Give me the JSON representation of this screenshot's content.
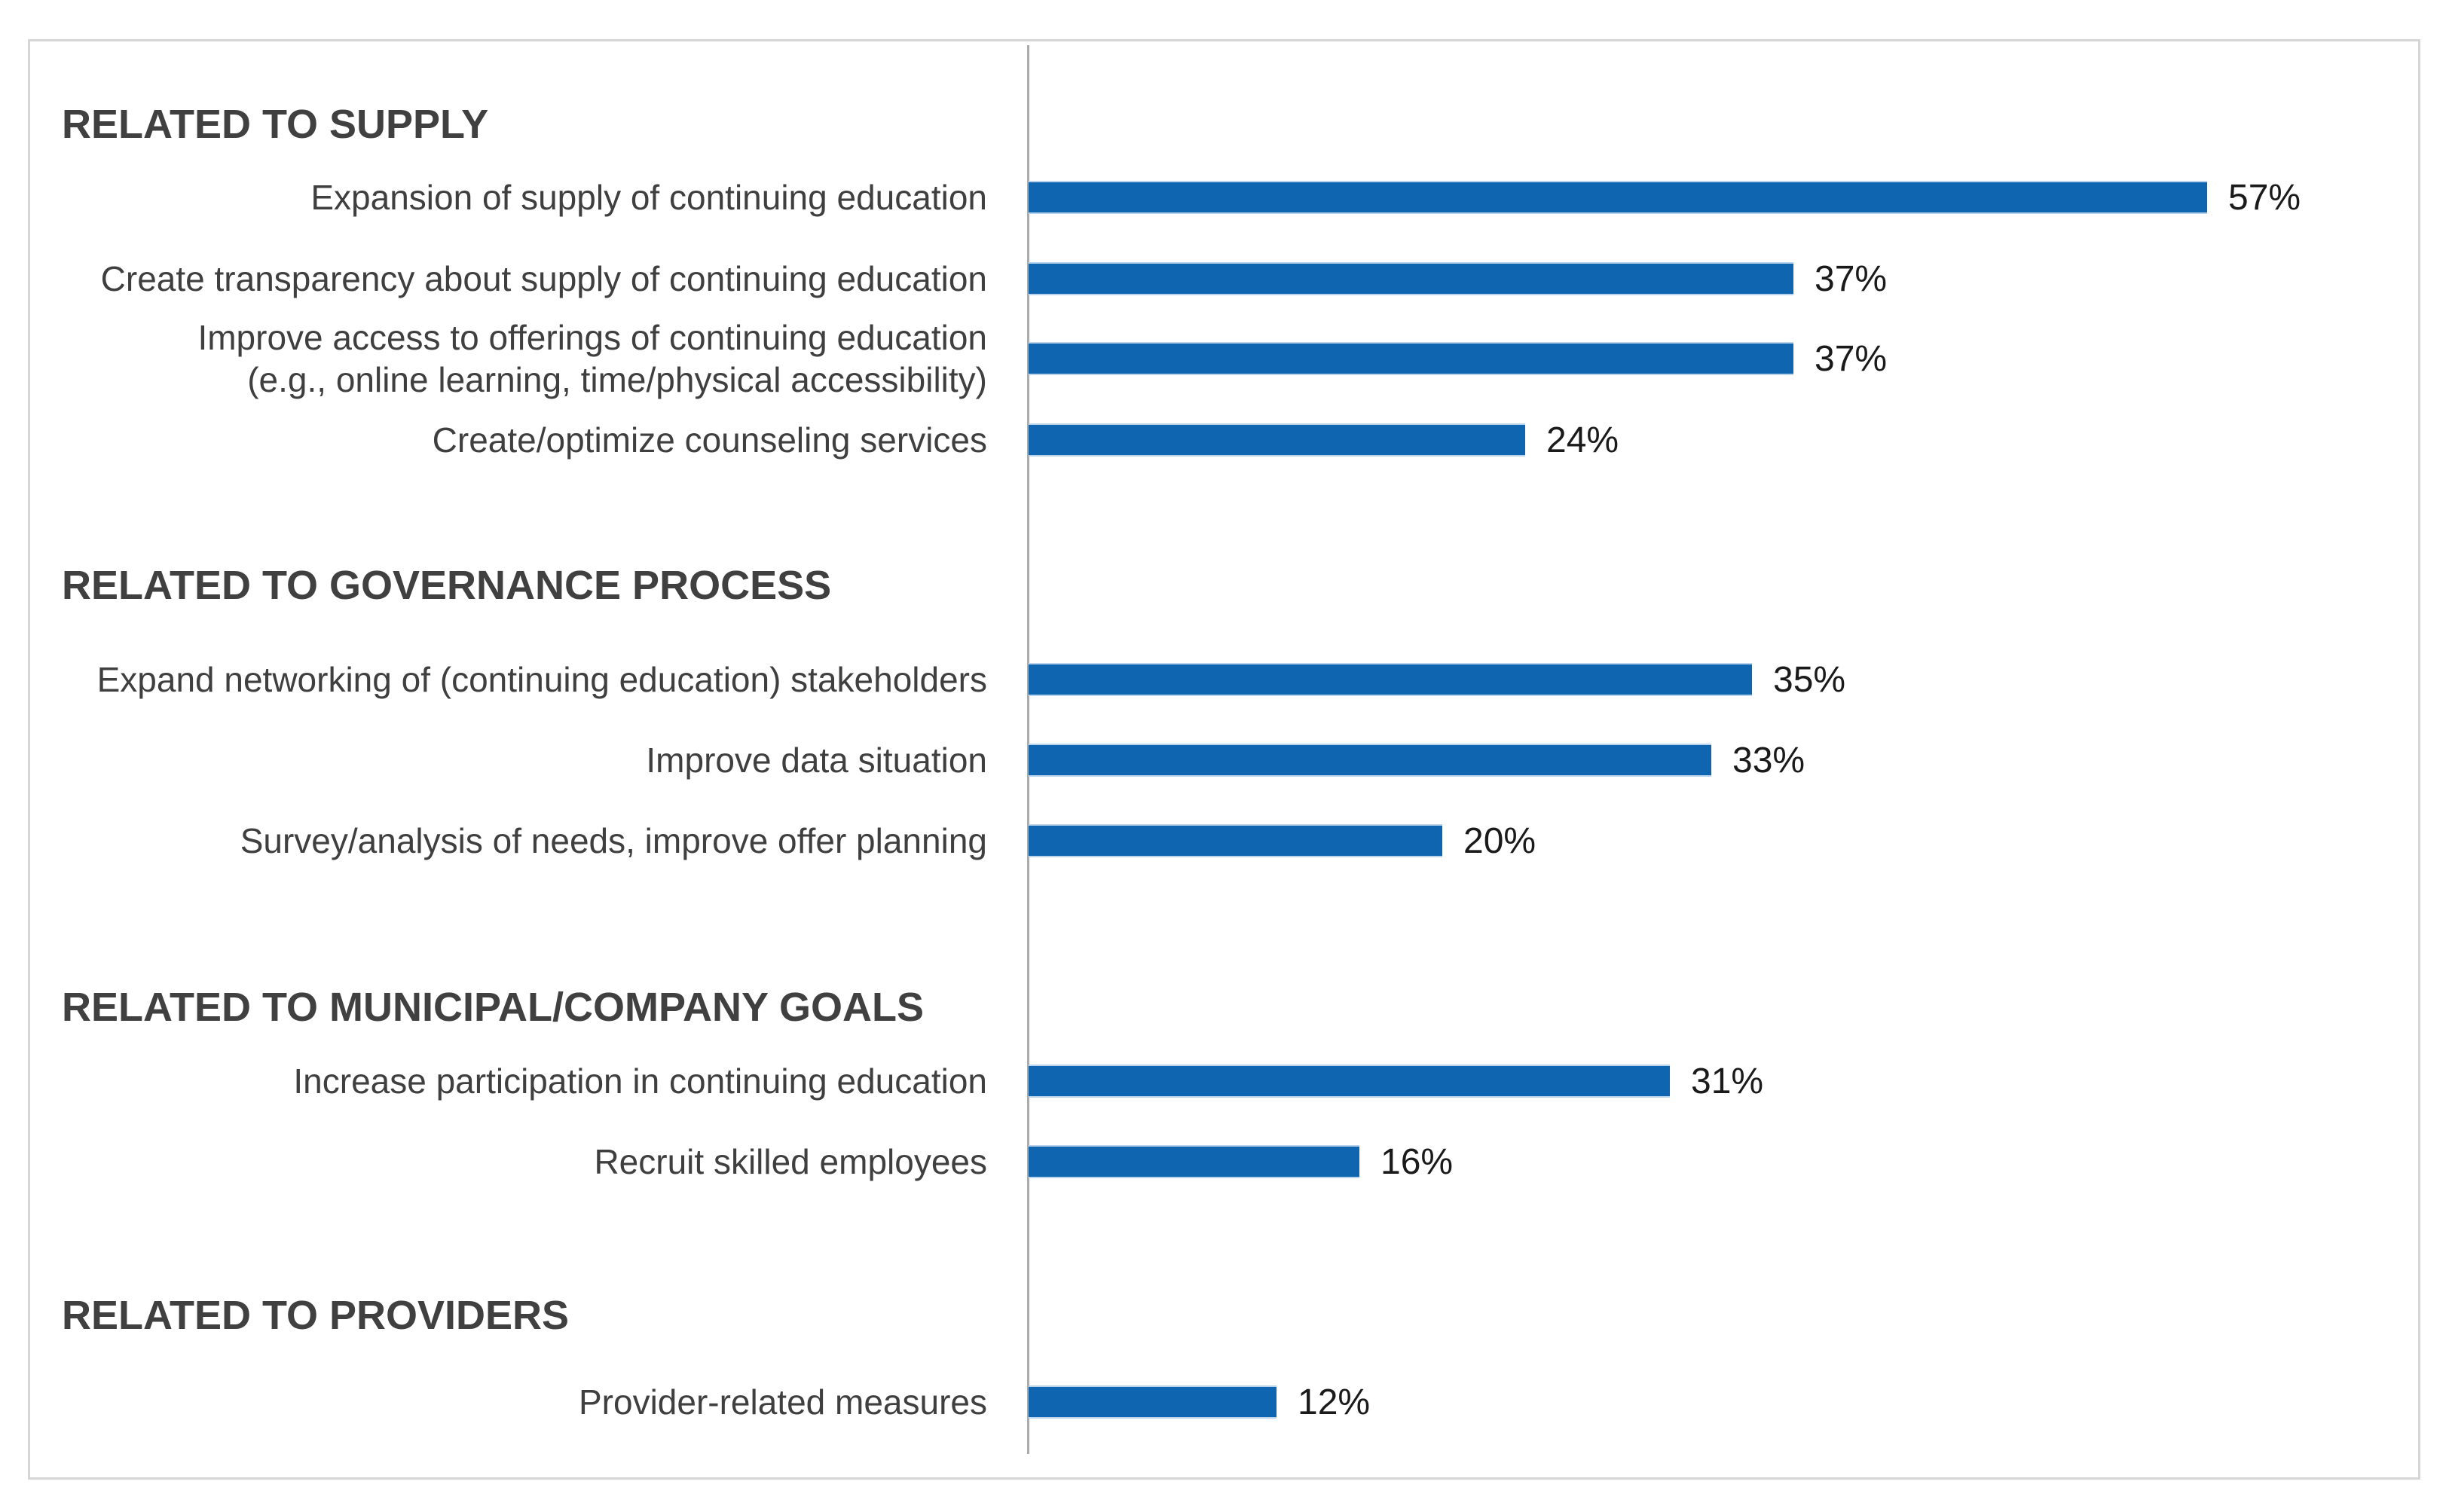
{
  "chart_data": {
    "type": "bar",
    "orientation": "horizontal",
    "unit": "%",
    "xlim": [
      0,
      60
    ],
    "grid": false,
    "legend": false,
    "bar_color": "#1065b1",
    "axis_line_color": "#ababab",
    "sections": [
      {
        "header": "RELATED TO SUPPLY",
        "items": [
          {
            "label": "Expansion of supply of continuing education",
            "value": 57,
            "display": "57%"
          },
          {
            "label": "Create transparency about supply of continuing education",
            "value": 37,
            "display": "37%"
          },
          {
            "label": "Improve access to offerings of continuing education\n(e.g., online learning, time/physical accessibility)",
            "value": 37,
            "display": "37%"
          },
          {
            "label": "Create/optimize counseling services",
            "value": 24,
            "display": "24%"
          }
        ]
      },
      {
        "header": "RELATED TO GOVERNANCE PROCESS",
        "items": [
          {
            "label": "Expand networking of (continuing education) stakeholders",
            "value": 35,
            "display": "35%"
          },
          {
            "label": "Improve data situation",
            "value": 33,
            "display": "33%"
          },
          {
            "label": "Survey/analysis of needs, improve offer planning",
            "value": 20,
            "display": "20%"
          }
        ]
      },
      {
        "header": "RELATED TO MUNICIPAL/COMPANY GOALS",
        "items": [
          {
            "label": "Increase participation in continuing education",
            "value": 31,
            "display": "31%"
          },
          {
            "label": "Recruit skilled employees",
            "value": 16,
            "display": "16%"
          }
        ]
      },
      {
        "header": "RELATED TO PROVIDERS",
        "items": [
          {
            "label": "Provider-related measures",
            "value": 12,
            "display": "12%"
          }
        ]
      }
    ]
  }
}
